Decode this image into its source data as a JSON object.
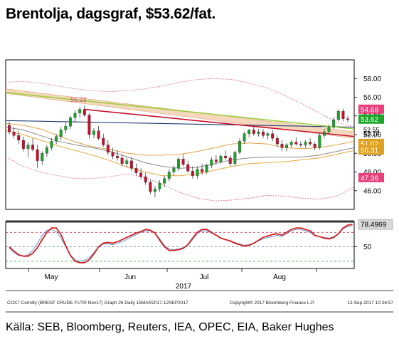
{
  "title": "Brentolja, dagsgraf, $53.62/fat.",
  "source": "Källa: SEB, Bloomberg, Reuters, IEA, OPEC, EIA, Baker Hughes",
  "footer": {
    "left": "COX7 Comdty (BRENT CRUDE FUTR  Nov17) Graph 26  Daily 15MAR2017-12SEP2017",
    "center": "Copyright® 2017 Bloomberg Finance L.P.",
    "right": "12-Sep-2017 10:26:57"
  },
  "colors": {
    "up": "#1aa52a",
    "down": "#c8102e",
    "bb": "#e0607e",
    "ma": "#d9a45a",
    "channel": "#f2c9a8",
    "rsi": "#d81e1e",
    "stoch": "#5a8fd6"
  },
  "chart_data": [
    {
      "type": "candlestick",
      "ylim": [
        44,
        60
      ],
      "yticks": [
        "58.00",
        "56.00",
        "54.00",
        "52.00",
        "50.00",
        "48.00",
        "46.00"
      ],
      "month_labels": [
        "May",
        "Jun",
        "Jul",
        "Aug"
      ],
      "year_label": "2017",
      "annotation": "55.33",
      "candles": [
        [
          53.0,
          53.4,
          52.0,
          52.3
        ],
        [
          52.3,
          52.8,
          51.6,
          51.9
        ],
        [
          51.9,
          52.4,
          51.0,
          51.4
        ],
        [
          51.4,
          51.8,
          50.2,
          50.5
        ],
        [
          50.5,
          51.2,
          49.6,
          50.9
        ],
        [
          50.9,
          51.6,
          50.2,
          50.4
        ],
        [
          50.4,
          50.9,
          48.4,
          49.2
        ],
        [
          49.2,
          50.2,
          48.8,
          50.0
        ],
        [
          50.0,
          50.9,
          49.6,
          50.6
        ],
        [
          50.6,
          51.6,
          50.3,
          51.3
        ],
        [
          51.3,
          52.1,
          51.0,
          51.8
        ],
        [
          51.8,
          52.8,
          51.4,
          52.5
        ],
        [
          52.5,
          53.3,
          52.1,
          52.9
        ],
        [
          52.9,
          54.0,
          52.6,
          53.8
        ],
        [
          53.8,
          54.6,
          53.3,
          54.3
        ],
        [
          54.3,
          55.0,
          53.8,
          54.7
        ],
        [
          54.7,
          55.1,
          53.9,
          54.1
        ],
        [
          54.1,
          54.3,
          51.6,
          52.0
        ],
        [
          52.0,
          52.7,
          51.6,
          52.4
        ],
        [
          52.4,
          52.9,
          51.4,
          51.6
        ],
        [
          51.6,
          52.1,
          50.7,
          50.9
        ],
        [
          50.9,
          51.4,
          49.8,
          50.1
        ],
        [
          50.1,
          50.6,
          49.4,
          49.7
        ],
        [
          49.7,
          50.3,
          49.2,
          49.5
        ],
        [
          49.5,
          49.9,
          48.6,
          48.9
        ],
        [
          48.9,
          49.5,
          48.5,
          49.2
        ],
        [
          49.2,
          49.6,
          48.1,
          48.4
        ],
        [
          48.4,
          48.9,
          47.6,
          47.9
        ],
        [
          47.9,
          48.4,
          47.2,
          47.5
        ],
        [
          47.5,
          47.9,
          46.6,
          46.9
        ],
        [
          46.9,
          47.2,
          45.6,
          45.9
        ],
        [
          45.9,
          46.5,
          45.3,
          46.2
        ],
        [
          46.2,
          47.1,
          45.9,
          46.8
        ],
        [
          46.8,
          47.6,
          46.4,
          47.3
        ],
        [
          47.3,
          48.3,
          47.0,
          48.0
        ],
        [
          48.0,
          48.7,
          47.6,
          48.4
        ],
        [
          48.4,
          49.6,
          48.1,
          49.4
        ],
        [
          49.4,
          49.9,
          48.6,
          48.8
        ],
        [
          48.8,
          49.2,
          47.9,
          48.1
        ],
        [
          48.1,
          48.6,
          47.3,
          47.6
        ],
        [
          47.6,
          48.6,
          47.3,
          48.3
        ],
        [
          48.3,
          48.9,
          47.7,
          48.0
        ],
        [
          48.0,
          48.9,
          47.8,
          48.7
        ],
        [
          48.7,
          49.6,
          48.4,
          49.3
        ],
        [
          49.3,
          49.8,
          48.8,
          49.1
        ],
        [
          49.1,
          49.9,
          48.9,
          49.7
        ],
        [
          49.7,
          50.3,
          49.3,
          49.5
        ],
        [
          49.5,
          49.8,
          48.6,
          48.9
        ],
        [
          48.9,
          50.3,
          48.7,
          50.1
        ],
        [
          50.1,
          51.6,
          49.9,
          51.3
        ],
        [
          51.3,
          52.3,
          51.0,
          52.1
        ],
        [
          52.1,
          52.6,
          51.7,
          52.5
        ],
        [
          52.5,
          52.8,
          51.9,
          52.1
        ],
        [
          52.1,
          52.6,
          51.8,
          52.3
        ],
        [
          52.3,
          52.6,
          51.6,
          51.9
        ],
        [
          51.9,
          52.3,
          51.5,
          52.1
        ],
        [
          52.1,
          52.5,
          51.3,
          51.6
        ],
        [
          51.6,
          51.9,
          50.7,
          51.0
        ],
        [
          51.0,
          51.4,
          50.2,
          50.6
        ],
        [
          50.6,
          51.1,
          50.2,
          50.9
        ],
        [
          50.9,
          51.4,
          50.6,
          51.2
        ],
        [
          51.2,
          51.7,
          50.8,
          51.0
        ],
        [
          51.0,
          51.3,
          50.6,
          50.9
        ],
        [
          50.9,
          51.4,
          50.6,
          51.2
        ],
        [
          51.2,
          51.6,
          50.8,
          51.0
        ],
        [
          51.0,
          51.2,
          50.3,
          50.6
        ],
        [
          50.6,
          52.1,
          50.4,
          51.9
        ],
        [
          51.9,
          52.6,
          51.6,
          52.3
        ],
        [
          52.3,
          53.1,
          52.0,
          52.8
        ],
        [
          52.8,
          53.9,
          52.6,
          53.6
        ],
        [
          53.6,
          54.7,
          53.4,
          54.5
        ],
        [
          54.5,
          54.8,
          53.4,
          53.7
        ],
        [
          53.7,
          54.0,
          53.3,
          53.6
        ]
      ],
      "bollinger": {
        "upper": [
          57.6,
          57.7,
          57.5,
          57.2,
          56.9,
          56.7,
          56.6,
          56.7,
          56.9,
          57.2,
          57.6,
          57.9,
          58.0,
          57.9,
          57.5,
          57.0,
          56.2,
          55.3,
          54.3,
          53.3,
          52.8
        ],
        "lower": [
          49.6,
          48.6,
          48.0,
          47.6,
          47.3,
          47.3,
          47.5,
          47.8,
          47.4,
          46.7,
          45.8,
          45.2,
          44.9,
          45.0,
          45.2,
          45.5,
          45.4,
          45.2,
          45.1,
          45.4,
          46.4
        ]
      },
      "ma_bands": [
        [
          53.2,
          53.0,
          52.6,
          51.9,
          51.2,
          50.7,
          50.4,
          50.0,
          49.8,
          49.8,
          49.9,
          50.2,
          50.6,
          51.0,
          51.1,
          51.0,
          50.6,
          50.5,
          50.6,
          50.9,
          51.3
        ],
        [
          52.8,
          52.5,
          51.9,
          51.3,
          50.9,
          50.6,
          50.2,
          49.6,
          49.0,
          48.6,
          48.4,
          48.5,
          48.9,
          49.3,
          49.5,
          49.6,
          49.6,
          49.6,
          49.8,
          50.2,
          50.6
        ],
        [
          52.4,
          52.0,
          51.4,
          50.8,
          50.3,
          49.8,
          49.2,
          48.5,
          48.0,
          47.6,
          47.6,
          47.8,
          48.2,
          48.6,
          48.9,
          49.0,
          49.1,
          49.3,
          49.5,
          49.9,
          50.3
        ]
      ],
      "ma_long": [
        53.5,
        52.8
      ],
      "channel_upper": [
        56.9,
        52.3
      ],
      "channel_lower": [
        56.4,
        51.6
      ],
      "red_line": [
        54.7,
        51.8
      ],
      "green_line": [
        56.5,
        52.6
      ],
      "price_labels": [
        {
          "value": "54.68",
          "y": 54.68,
          "color": "#e8407c"
        },
        {
          "value": "53.62",
          "y": 53.62,
          "color": "#1aa52a"
        },
        {
          "value": "51.02",
          "y": 51.02,
          "color": "#e0a020"
        },
        {
          "value": "50.31",
          "y": 50.31,
          "color": "#e0a020"
        },
        {
          "value": "47.36",
          "y": 47.36,
          "color": "#e8407c"
        }
      ],
      "hidden_labels": [
        "52.55",
        "52.14"
      ]
    },
    {
      "type": "line",
      "ylim": [
        20,
        85
      ],
      "yticks": [
        "50"
      ],
      "reference_lines": [
        70,
        50,
        30
      ],
      "current_label": "78.4969",
      "series": [
        {
          "values": [
            48,
            42,
            38,
            37,
            39,
            45,
            55,
            66,
            73,
            74,
            71,
            62,
            50,
            39,
            32,
            30,
            31,
            35,
            42,
            50,
            54,
            54,
            53,
            55,
            57,
            60,
            64,
            67,
            70,
            72,
            72,
            69,
            61,
            52,
            47,
            46,
            47,
            49,
            52,
            60,
            68,
            72,
            72,
            69,
            66,
            62,
            60,
            58,
            56,
            54,
            52,
            53,
            55,
            58,
            61,
            63,
            64,
            66,
            64,
            68,
            72,
            74,
            74,
            72,
            70,
            65,
            64,
            63,
            62,
            64,
            68,
            75,
            78,
            79
          ]
        },
        {
          "values": [
            50,
            44,
            39,
            37,
            37,
            41,
            49,
            60,
            70,
            76,
            76,
            67,
            52,
            38,
            30,
            28,
            28,
            32,
            40,
            50,
            55,
            56,
            55,
            57,
            60,
            63,
            66,
            69,
            71,
            74,
            73,
            69,
            59,
            50,
            45,
            45,
            46,
            48,
            53,
            62,
            70,
            74,
            74,
            70,
            66,
            62,
            60,
            58,
            55,
            53,
            51,
            52,
            55,
            59,
            63,
            65,
            67,
            68,
            66,
            70,
            74,
            76,
            76,
            74,
            72,
            66,
            64,
            62,
            61,
            63,
            68,
            76,
            80,
            81
          ]
        }
      ]
    }
  ]
}
